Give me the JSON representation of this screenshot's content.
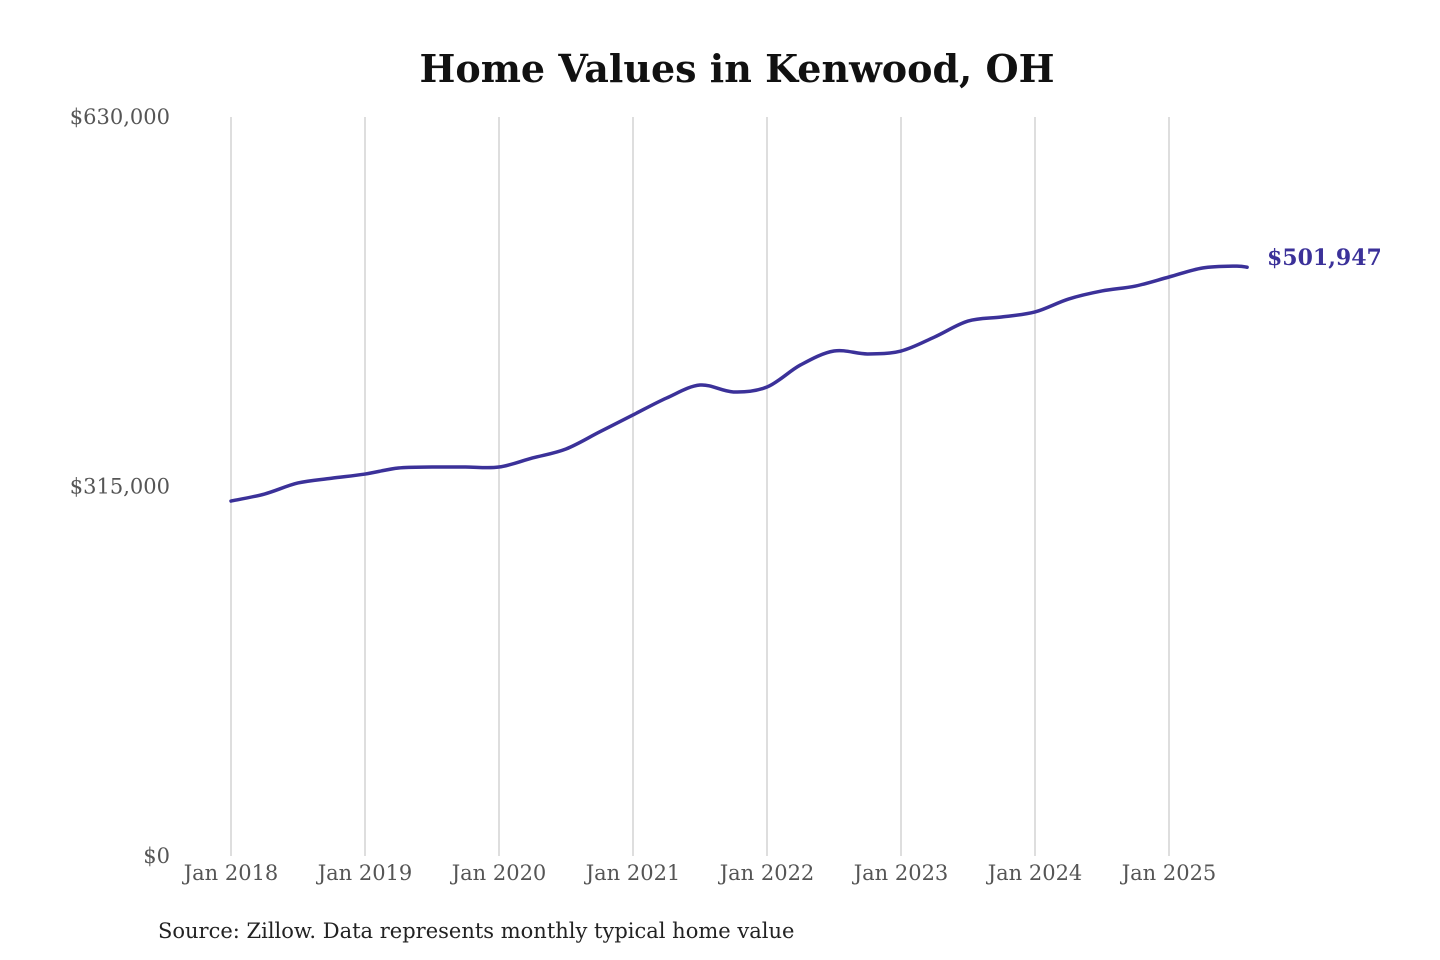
{
  "chart_data": {
    "type": "line",
    "title": "Home Values in Kenwood, OH",
    "source": "Source: Zillow. Data represents monthly typical home value",
    "xlabel": "",
    "ylabel": "",
    "ylim": [
      0,
      630000
    ],
    "y_ticks": [
      {
        "value": 0,
        "label": "$0"
      },
      {
        "value": 315000,
        "label": "$315,000"
      },
      {
        "value": 630000,
        "label": "$630,000"
      }
    ],
    "x_ticks": [
      {
        "value": 2018.0,
        "label": "Jan 2018"
      },
      {
        "value": 2019.0,
        "label": "Jan 2019"
      },
      {
        "value": 2020.0,
        "label": "Jan 2020"
      },
      {
        "value": 2021.0,
        "label": "Jan 2021"
      },
      {
        "value": 2022.0,
        "label": "Jan 2022"
      },
      {
        "value": 2023.0,
        "label": "Jan 2023"
      },
      {
        "value": 2024.0,
        "label": "Jan 2024"
      },
      {
        "value": 2025.0,
        "label": "Jan 2025"
      }
    ],
    "xlim": [
      2018.0,
      2025.583
    ],
    "grid": "vertical",
    "color": "#3b3199",
    "end_label": "$501,947",
    "series": [
      {
        "name": "Typical home value",
        "x": [
          2018.0,
          2018.25,
          2018.5,
          2018.75,
          2019.0,
          2019.25,
          2019.5,
          2019.75,
          2020.0,
          2020.25,
          2020.5,
          2020.75,
          2021.0,
          2021.25,
          2021.5,
          2021.75,
          2022.0,
          2022.25,
          2022.5,
          2022.75,
          2023.0,
          2023.25,
          2023.5,
          2023.75,
          2024.0,
          2024.25,
          2024.5,
          2024.75,
          2025.0,
          2025.25,
          2025.5,
          2025.583
        ],
        "values": [
          302600,
          308600,
          318000,
          322000,
          325600,
          330800,
          331600,
          331600,
          331600,
          339300,
          347000,
          361500,
          376000,
          390400,
          401500,
          395600,
          399800,
          418600,
          430500,
          428000,
          430500,
          442400,
          456000,
          459500,
          463800,
          474800,
          481700,
          485900,
          493600,
          501300,
          502900,
          501947
        ]
      }
    ]
  }
}
